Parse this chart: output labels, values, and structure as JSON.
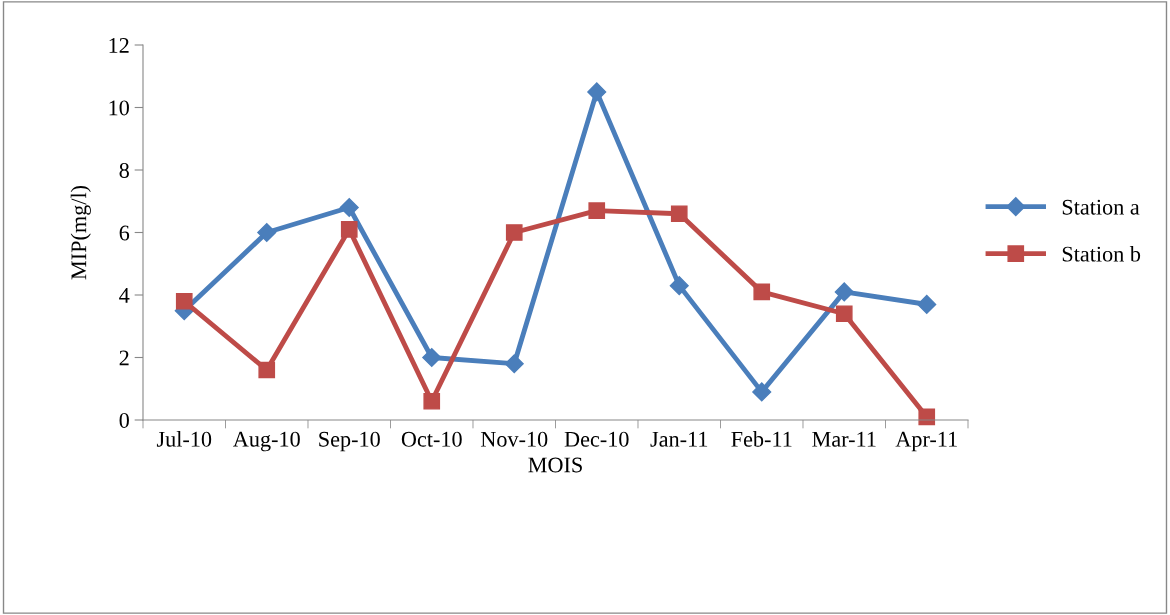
{
  "chart_data": {
    "type": "line",
    "xlabel": "MOIS",
    "ylabel": "MIP(mg/l)",
    "categories": [
      "Jul-10",
      "Aug-10",
      "Sep-10",
      "Oct-10",
      "Nov-10",
      "Dec-10",
      "Jan-11",
      "Feb-11",
      "Mar-11",
      "Apr-11"
    ],
    "series": [
      {
        "name": "Station a",
        "color": "#4a7ebb",
        "marker": "diamond",
        "values": [
          3.5,
          6.0,
          6.8,
          2.0,
          1.8,
          10.5,
          4.3,
          0.9,
          4.1,
          3.7
        ]
      },
      {
        "name": "Station b",
        "color": "#be4b48",
        "marker": "square",
        "values": [
          3.8,
          1.6,
          6.1,
          0.6,
          6.0,
          6.7,
          6.6,
          4.1,
          3.4,
          0.1
        ]
      }
    ],
    "ylim": [
      0,
      12
    ],
    "yticks": [
      0,
      2,
      4,
      6,
      8,
      10,
      12
    ],
    "grid": false,
    "legend": "right",
    "line_style": "solid"
  }
}
